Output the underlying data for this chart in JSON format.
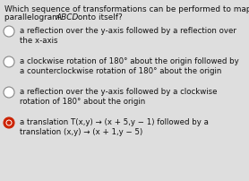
{
  "background_color": "#dedede",
  "title_line1": "Which sequence of transformations can be performed to map",
  "title_line2": "parallelogram ABCD onto itself?",
  "options": [
    {
      "text_lines": [
        "a reflection over the y‑axis followed by a reflection over",
        "the x‑axis"
      ],
      "selected": false
    },
    {
      "text_lines": [
        "a clockwise rotation of 180° about the origin followed by",
        "a counterclockwise rotation of 180° about the origin"
      ],
      "selected": false
    },
    {
      "text_lines": [
        "a reflection over the y‑axis followed by a clockwise",
        "rotation of 180° about the origin"
      ],
      "selected": false
    },
    {
      "text_lines": [
        "a translation T(x,y) → (x + 5,y − 1) followed by a",
        "translation (x,y) → (x + 1,y − 5)"
      ],
      "selected": true
    }
  ],
  "font_size": 6.2,
  "title_font_size": 6.4,
  "radio_color_empty": "#ffffff",
  "radio_color_selected": "#cc2200",
  "radio_border_empty": "#888888",
  "radio_border_selected": "#cc2200",
  "radio_inner_ring": "#cc3300",
  "text_color": "#111111",
  "title_italic_part": "ABCD"
}
